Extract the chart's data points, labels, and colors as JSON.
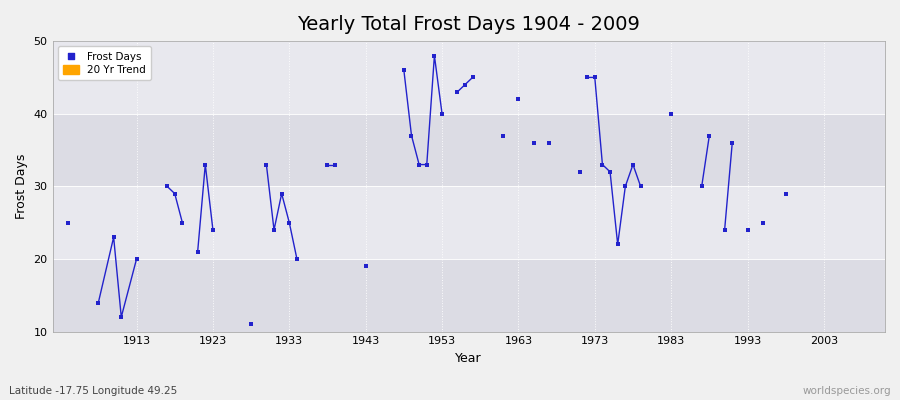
{
  "title": "Yearly Total Frost Days 1904 - 2009",
  "xlabel": "Year",
  "ylabel": "Frost Days",
  "subtitle": "Latitude -17.75 Longitude 49.25",
  "watermark": "worldspecies.org",
  "ylim": [
    10,
    50
  ],
  "xlim": [
    1902,
    2011
  ],
  "xticks": [
    1913,
    1923,
    1933,
    1943,
    1953,
    1963,
    1973,
    1983,
    1993,
    2003
  ],
  "yticks": [
    10,
    20,
    30,
    40,
    50
  ],
  "data_points": [
    [
      1904,
      25
    ],
    [
      1908,
      14
    ],
    [
      1910,
      23
    ],
    [
      1911,
      12
    ],
    [
      1913,
      20
    ],
    [
      1917,
      30
    ],
    [
      1918,
      29
    ],
    [
      1919,
      25
    ],
    [
      1921,
      21
    ],
    [
      1922,
      33
    ],
    [
      1923,
      24
    ],
    [
      1928,
      11
    ],
    [
      1930,
      33
    ],
    [
      1931,
      24
    ],
    [
      1932,
      29
    ],
    [
      1933,
      25
    ],
    [
      1934,
      20
    ],
    [
      1938,
      33
    ],
    [
      1939,
      33
    ],
    [
      1943,
      19
    ],
    [
      1948,
      46
    ],
    [
      1949,
      37
    ],
    [
      1950,
      33
    ],
    [
      1951,
      33
    ],
    [
      1952,
      48
    ],
    [
      1953,
      40
    ],
    [
      1955,
      43
    ],
    [
      1956,
      44
    ],
    [
      1957,
      45
    ],
    [
      1961,
      37
    ],
    [
      1963,
      42
    ],
    [
      1965,
      36
    ],
    [
      1967,
      36
    ],
    [
      1971,
      32
    ],
    [
      1972,
      45
    ],
    [
      1973,
      45
    ],
    [
      1974,
      33
    ],
    [
      1975,
      32
    ],
    [
      1976,
      22
    ],
    [
      1977,
      30
    ],
    [
      1978,
      33
    ],
    [
      1979,
      30
    ],
    [
      1983,
      40
    ],
    [
      1987,
      30
    ],
    [
      1988,
      37
    ],
    [
      1990,
      24
    ],
    [
      1991,
      36
    ],
    [
      1993,
      24
    ],
    [
      1995,
      25
    ],
    [
      1998,
      29
    ]
  ],
  "line_segments": [
    [
      1904
    ],
    [
      1908,
      1910,
      1911,
      1913
    ],
    [
      1917,
      1918,
      1919
    ],
    [
      1921,
      1922,
      1923
    ],
    [
      1928
    ],
    [
      1930,
      1931,
      1932,
      1933,
      1934
    ],
    [
      1938,
      1939
    ],
    [
      1943
    ],
    [
      1948,
      1949,
      1950,
      1951,
      1952,
      1953
    ],
    [
      1955,
      1956,
      1957
    ],
    [
      1961
    ],
    [
      1963
    ],
    [
      1965
    ],
    [
      1967
    ],
    [
      1971
    ],
    [
      1972,
      1973,
      1974,
      1975,
      1976,
      1977,
      1978,
      1979
    ],
    [
      1983
    ],
    [
      1987,
      1988
    ],
    [
      1990,
      1991
    ],
    [
      1993
    ],
    [
      1995
    ],
    [
      1998
    ]
  ],
  "line_color": "#2222cc",
  "marker_color": "#2222cc",
  "marker_size": 3,
  "bg_color": "#f0f0f0",
  "plot_bg_light": "#e8e8ee",
  "plot_bg_dark": "#dcdce4",
  "legend_frost_color": "#2222cc",
  "legend_trend_color": "#ffa500",
  "title_fontsize": 14,
  "label_fontsize": 9,
  "tick_fontsize": 8
}
